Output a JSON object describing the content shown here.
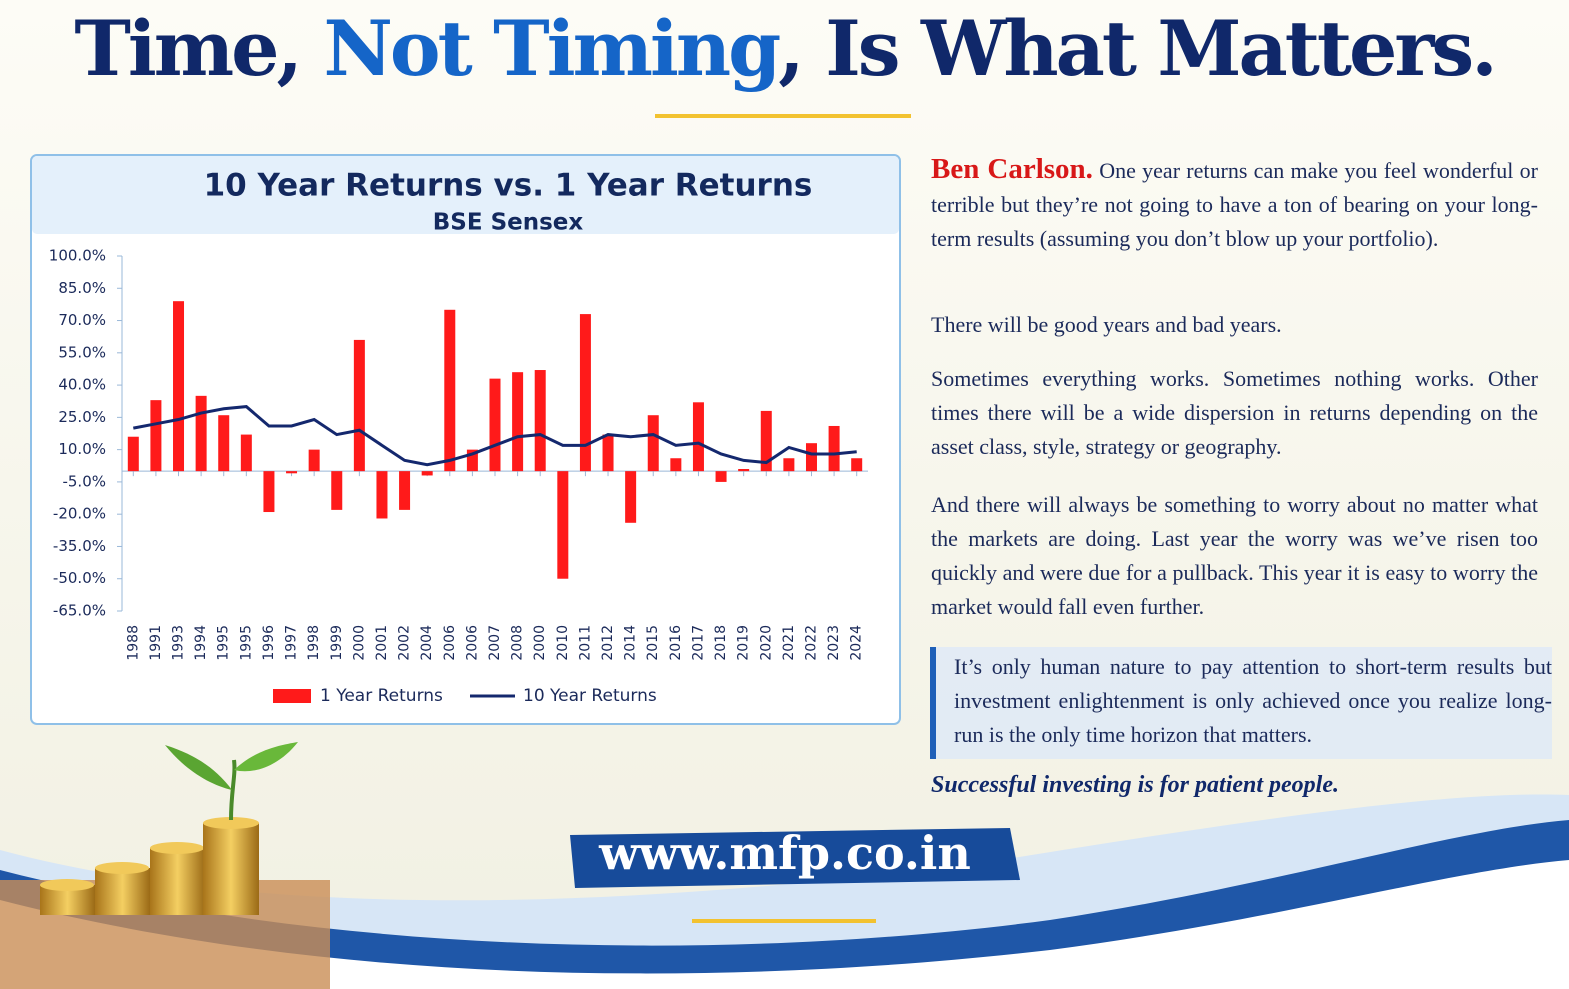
{
  "header": {
    "title_parts": [
      "Time, ",
      "Not Timing",
      ", Is What Matters."
    ]
  },
  "chart_data": {
    "type": "bar",
    "title": "10 Year Returns vs. 1 Year Returns",
    "subtitle": "BSE Sensex",
    "categories": [
      "1988",
      "1991",
      "1993",
      "1994",
      "1995",
      "1995",
      "1996",
      "1997",
      "1998",
      "1999",
      "2000",
      "2001",
      "2002",
      "2004",
      "2006",
      "2006",
      "2007",
      "2008",
      "2000",
      "2010",
      "2011",
      "2012",
      "2014",
      "2015",
      "2016",
      "2017",
      "2018",
      "2019",
      "2020",
      "2021",
      "2022",
      "2023",
      "2024"
    ],
    "series": [
      {
        "name": "1 Year Returns",
        "type": "bar",
        "color": "#ff1a1a",
        "values": [
          16,
          33,
          79,
          35,
          26,
          17,
          -19,
          -1,
          10,
          -18,
          61,
          -22,
          -18,
          -2,
          75,
          10,
          43,
          46,
          47,
          -50,
          73,
          17,
          -24,
          26,
          6,
          32,
          -5,
          1,
          28,
          6,
          13,
          21,
          6
        ]
      },
      {
        "name": "10 Year Returns",
        "type": "line",
        "color": "#14286e",
        "values": [
          20,
          22,
          24,
          27,
          29,
          30,
          21,
          21,
          24,
          17,
          19,
          12,
          5,
          3,
          5,
          8,
          12,
          16,
          17,
          12,
          12,
          17,
          16,
          17,
          12,
          13,
          8,
          5,
          4,
          11,
          8,
          8,
          9
        ]
      }
    ],
    "ylim": [
      -65,
      100
    ],
    "yticks": [
      {
        "value": 100,
        "label": "100.0%"
      },
      {
        "value": 85,
        "label": "85.0%"
      },
      {
        "value": 70,
        "label": "70.0%"
      },
      {
        "value": 55,
        "label": "55.0%"
      },
      {
        "value": 40,
        "label": "40.0%"
      },
      {
        "value": 25,
        "label": "25.0%"
      },
      {
        "value": 10,
        "label": "10.0%"
      },
      {
        "value": -5,
        "label": "-5.0%"
      },
      {
        "value": -20,
        "label": "-20.0%"
      },
      {
        "value": -35,
        "label": "-35.0%"
      },
      {
        "value": -50,
        "label": "-50.0%"
      },
      {
        "value": -65,
        "label": "-65.0%"
      }
    ],
    "legend": "bottom"
  },
  "text": {
    "author": "Ben Carlson.",
    "intro": "One year returns can make you feel wonderful or terrible but they’re not going to have a ton of bearing on your long-term results (assuming you don’t blow up your portfolio).",
    "paragraphs": [
      "There will be good years and bad years.",
      "Sometimes everything works. Sometimes nothing works. Other times there will be a wide dispersion in returns depending on the asset class, style, strategy or geography.",
      "And there will always be something to worry about no matter what the markets are doing. Last year the worry was we’ve risen too quickly and were due for a pullback. This year it is easy to worry the market would fall even further."
    ],
    "quote": "It’s only human nature to pay attention to short-term results but investment enlightenment is only achieved once you realize long-run is the only time horizon that matters.",
    "closing": "Successful investing is for patient people."
  },
  "footer": {
    "url": "www.mfp.co.in"
  }
}
